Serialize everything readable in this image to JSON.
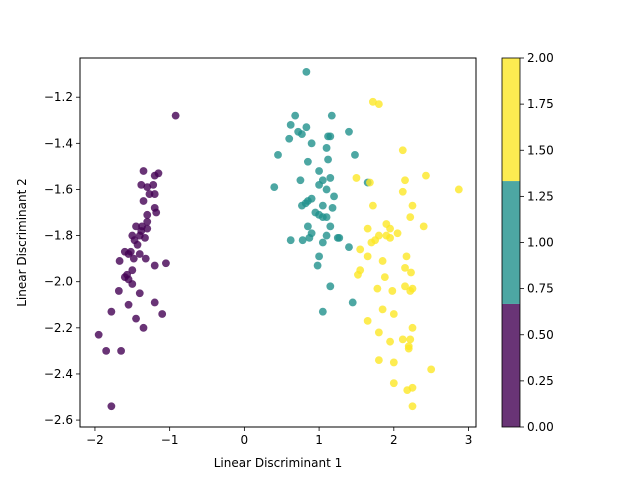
{
  "chart_data": {
    "type": "scatter",
    "title": "",
    "xlabel": "Linear Discriminant 1",
    "ylabel": "Linear Discriminant 2",
    "xlim": [
      -2.2,
      3.1
    ],
    "ylim": [
      -2.63,
      -1.03
    ],
    "xticks": [
      -2,
      -1,
      0,
      1,
      2,
      3
    ],
    "yticks": [
      -2.6,
      -2.4,
      -2.2,
      -2.0,
      -1.8,
      -1.6,
      -1.4,
      -1.2
    ],
    "grid": false,
    "colorbar": {
      "range": [
        0,
        2
      ],
      "ticks": [
        "0.00",
        "0.25",
        "0.50",
        "0.75",
        "1.00",
        "1.25",
        "1.50",
        "1.75",
        "2.00"
      ],
      "tick_values": [
        0,
        0.25,
        0.5,
        0.75,
        1.0,
        1.25,
        1.5,
        1.75,
        2.0
      ],
      "bands": [
        {
          "from": 0,
          "to": 0.667,
          "color": "#440154"
        },
        {
          "from": 0.667,
          "to": 1.333,
          "color": "#21918c"
        },
        {
          "from": 1.333,
          "to": 2.0,
          "color": "#fde725"
        }
      ]
    },
    "series": [
      {
        "class_value": 0,
        "color": "#440154",
        "points": [
          [
            -0.92,
            -1.28
          ],
          [
            -1.35,
            -1.52
          ],
          [
            -1.2,
            -1.54
          ],
          [
            -1.15,
            -1.53
          ],
          [
            -1.38,
            -1.58
          ],
          [
            -1.3,
            -1.59
          ],
          [
            -1.22,
            -1.58
          ],
          [
            -1.27,
            -1.62
          ],
          [
            -1.2,
            -1.62
          ],
          [
            -1.35,
            -1.65
          ],
          [
            -1.2,
            -1.68
          ],
          [
            -1.18,
            -1.7
          ],
          [
            -1.3,
            -1.71
          ],
          [
            -1.3,
            -1.74
          ],
          [
            -1.37,
            -1.76
          ],
          [
            -1.45,
            -1.76
          ],
          [
            -1.3,
            -1.77
          ],
          [
            -1.38,
            -1.78
          ],
          [
            -1.4,
            -1.8
          ],
          [
            -1.5,
            -1.8
          ],
          [
            -1.33,
            -1.81
          ],
          [
            -1.47,
            -1.82
          ],
          [
            -1.43,
            -1.84
          ],
          [
            -1.52,
            -1.87
          ],
          [
            -1.6,
            -1.87
          ],
          [
            -1.4,
            -1.88
          ],
          [
            -1.55,
            -1.88
          ],
          [
            -1.48,
            -1.9
          ],
          [
            -1.67,
            -1.91
          ],
          [
            -1.32,
            -1.9
          ],
          [
            -1.05,
            -1.92
          ],
          [
            -1.2,
            -1.93
          ],
          [
            -1.5,
            -1.95
          ],
          [
            -1.57,
            -1.97
          ],
          [
            -1.6,
            -1.98
          ],
          [
            -1.55,
            -1.99
          ],
          [
            -1.5,
            -2.01
          ],
          [
            -1.68,
            -2.04
          ],
          [
            -1.4,
            -2.05
          ],
          [
            -1.2,
            -2.09
          ],
          [
            -1.55,
            -2.1
          ],
          [
            -1.78,
            -2.13
          ],
          [
            -1.1,
            -2.14
          ],
          [
            -1.45,
            -2.16
          ],
          [
            -1.35,
            -2.2
          ],
          [
            -1.95,
            -2.23
          ],
          [
            -1.85,
            -2.3
          ],
          [
            -1.65,
            -2.3
          ],
          [
            -1.78,
            -2.54
          ]
        ]
      },
      {
        "class_value": 1,
        "color": "#21918c",
        "points": [
          [
            0.83,
            -1.09
          ],
          [
            0.68,
            -1.28
          ],
          [
            1.17,
            -1.28
          ],
          [
            0.62,
            -1.32
          ],
          [
            0.83,
            -1.33
          ],
          [
            0.72,
            -1.35
          ],
          [
            0.77,
            -1.36
          ],
          [
            1.4,
            -1.35
          ],
          [
            0.6,
            -1.38
          ],
          [
            1.12,
            -1.37
          ],
          [
            1.15,
            -1.37
          ],
          [
            0.9,
            -1.4
          ],
          [
            1.1,
            -1.42
          ],
          [
            0.45,
            -1.45
          ],
          [
            1.48,
            -1.45
          ],
          [
            1.12,
            -1.47
          ],
          [
            0.85,
            -1.48
          ],
          [
            1.0,
            -1.52
          ],
          [
            0.75,
            -1.56
          ],
          [
            1.05,
            -1.56
          ],
          [
            1.15,
            -1.55
          ],
          [
            1.65,
            -1.57
          ],
          [
            0.4,
            -1.59
          ],
          [
            1.0,
            -1.58
          ],
          [
            1.1,
            -1.6
          ],
          [
            1.2,
            -1.63
          ],
          [
            0.9,
            -1.64
          ],
          [
            0.85,
            -1.65
          ],
          [
            0.82,
            -1.66
          ],
          [
            0.77,
            -1.67
          ],
          [
            1.05,
            -1.67
          ],
          [
            1.18,
            -1.68
          ],
          [
            0.95,
            -1.7
          ],
          [
            1.0,
            -1.71
          ],
          [
            1.1,
            -1.72
          ],
          [
            1.05,
            -1.72
          ],
          [
            0.85,
            -1.76
          ],
          [
            1.15,
            -1.76
          ],
          [
            1.1,
            -1.8
          ],
          [
            0.9,
            -1.79
          ],
          [
            0.87,
            -1.81
          ],
          [
            1.25,
            -1.81
          ],
          [
            1.27,
            -1.81
          ],
          [
            0.62,
            -1.82
          ],
          [
            0.78,
            -1.82
          ],
          [
            1.05,
            -1.83
          ],
          [
            1.4,
            -1.85
          ],
          [
            1.0,
            -1.89
          ],
          [
            0.98,
            -1.93
          ],
          [
            1.15,
            -2.02
          ],
          [
            1.45,
            -2.09
          ],
          [
            1.05,
            -2.13
          ]
        ]
      },
      {
        "class_value": 2,
        "color": "#fde725",
        "points": [
          [
            1.72,
            -1.22
          ],
          [
            1.8,
            -1.23
          ],
          [
            2.12,
            -1.43
          ],
          [
            2.43,
            -1.54
          ],
          [
            1.5,
            -1.55
          ],
          [
            2.87,
            -1.6
          ],
          [
            2.12,
            -1.61
          ],
          [
            2.15,
            -1.56
          ],
          [
            1.68,
            -1.57
          ],
          [
            2.25,
            -1.67
          ],
          [
            1.72,
            -1.67
          ],
          [
            2.22,
            -1.72
          ],
          [
            2.4,
            -1.76
          ],
          [
            1.65,
            -1.77
          ],
          [
            1.95,
            -1.77
          ],
          [
            2.05,
            -1.79
          ],
          [
            1.9,
            -1.75
          ],
          [
            1.8,
            -1.8
          ],
          [
            1.9,
            -1.8
          ],
          [
            1.95,
            -1.81
          ],
          [
            1.75,
            -1.82
          ],
          [
            1.7,
            -1.83
          ],
          [
            1.55,
            -1.86
          ],
          [
            1.65,
            -1.89
          ],
          [
            2.17,
            -1.89
          ],
          [
            1.85,
            -1.91
          ],
          [
            2.15,
            -1.94
          ],
          [
            1.55,
            -1.95
          ],
          [
            1.52,
            -1.97
          ],
          [
            2.23,
            -1.96
          ],
          [
            1.88,
            -1.98
          ],
          [
            2.15,
            -2.02
          ],
          [
            1.78,
            -2.03
          ],
          [
            2.25,
            -2.03
          ],
          [
            1.98,
            -2.04
          ],
          [
            2.22,
            -2.04
          ],
          [
            1.85,
            -2.12
          ],
          [
            2.0,
            -2.14
          ],
          [
            1.65,
            -2.17
          ],
          [
            2.25,
            -2.2
          ],
          [
            1.8,
            -2.22
          ],
          [
            2.12,
            -2.25
          ],
          [
            2.22,
            -2.25
          ],
          [
            1.95,
            -2.26
          ],
          [
            2.2,
            -2.28
          ],
          [
            2.2,
            -2.29
          ],
          [
            1.8,
            -2.34
          ],
          [
            2.0,
            -2.35
          ],
          [
            2.5,
            -2.38
          ],
          [
            2.0,
            -2.44
          ],
          [
            2.25,
            -2.46
          ],
          [
            2.18,
            -2.47
          ],
          [
            2.25,
            -2.54
          ]
        ]
      }
    ]
  }
}
